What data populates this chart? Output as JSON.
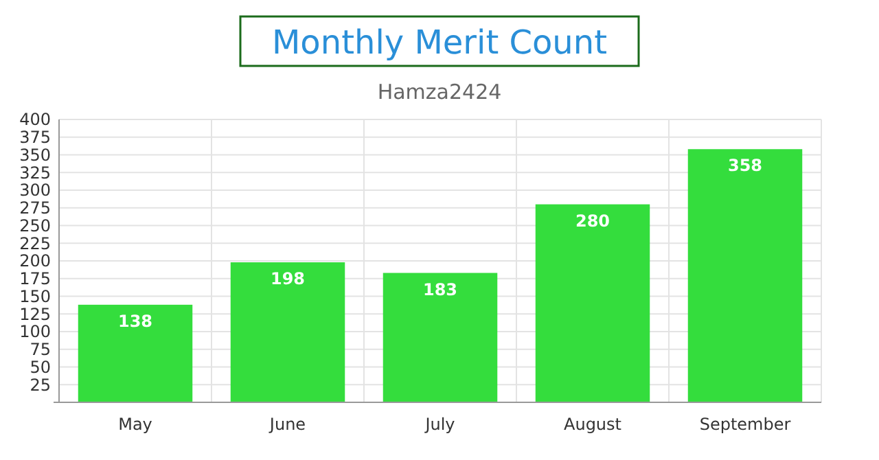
{
  "chart_data": {
    "type": "bar",
    "title": "Monthly Merit Count",
    "subtitle": "Hamza2424",
    "categories": [
      "May",
      "June",
      "July",
      "August",
      "September"
    ],
    "values": [
      138,
      198,
      183,
      280,
      358
    ],
    "color": "#34dd3d",
    "ylim": [
      0,
      400
    ],
    "yticks": [
      25,
      50,
      75,
      100,
      125,
      150,
      175,
      200,
      225,
      250,
      275,
      300,
      325,
      350,
      375,
      400
    ],
    "grid": true,
    "data_labels": true
  }
}
